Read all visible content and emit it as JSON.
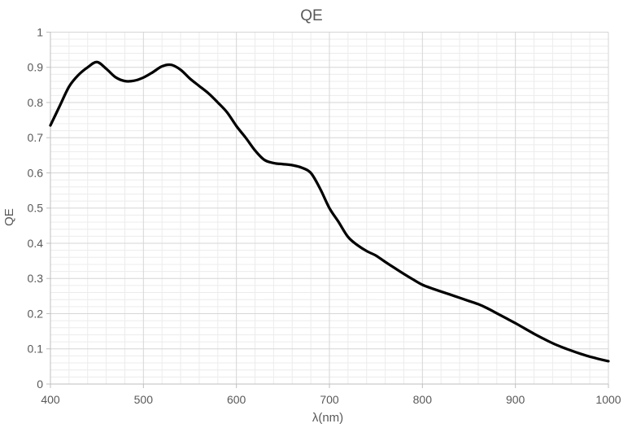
{
  "chart_data": {
    "type": "line",
    "title": "QE",
    "xlabel": "λ(nm)",
    "ylabel": "QE",
    "xlim": [
      400,
      1000
    ],
    "ylim": [
      0,
      1
    ],
    "x_major_step": 100,
    "x_minor_step": 20,
    "y_major_step": 0.1,
    "y_minor_step": 0.02,
    "grid": "major and minor gridlines, both axes",
    "legend_position": "none",
    "x_tick_labels": [
      "400",
      "500",
      "600",
      "700",
      "800",
      "900",
      "1000"
    ],
    "y_tick_labels": [
      "0",
      "0.1",
      "0.2",
      "0.3",
      "0.4",
      "0.5",
      "0.6",
      "0.7",
      "0.8",
      "0.9",
      "1"
    ],
    "x_ticks": [
      400,
      500,
      600,
      700,
      800,
      900,
      1000
    ],
    "y_ticks": [
      0,
      0.1,
      0.2,
      0.3,
      0.4,
      0.5,
      0.6,
      0.7,
      0.8,
      0.9,
      1
    ],
    "series": [
      {
        "name": "QE",
        "color": "#000000",
        "x": [
          400,
          410,
          420,
          430,
          440,
          450,
          460,
          470,
          480,
          490,
          500,
          510,
          520,
          530,
          540,
          550,
          560,
          570,
          580,
          590,
          600,
          610,
          620,
          630,
          640,
          650,
          660,
          670,
          680,
          690,
          700,
          710,
          720,
          730,
          740,
          750,
          760,
          770,
          780,
          790,
          800,
          810,
          820,
          830,
          840,
          850,
          860,
          870,
          880,
          890,
          900,
          910,
          920,
          930,
          940,
          950,
          960,
          970,
          980,
          990,
          1000
        ],
        "y": [
          0.735,
          0.79,
          0.845,
          0.878,
          0.9,
          0.915,
          0.896,
          0.872,
          0.861,
          0.862,
          0.871,
          0.886,
          0.903,
          0.907,
          0.893,
          0.868,
          0.847,
          0.826,
          0.8,
          0.772,
          0.733,
          0.7,
          0.664,
          0.637,
          0.628,
          0.625,
          0.622,
          0.615,
          0.6,
          0.555,
          0.5,
          0.46,
          0.418,
          0.395,
          0.378,
          0.365,
          0.347,
          0.33,
          0.313,
          0.297,
          0.282,
          0.272,
          0.263,
          0.254,
          0.245,
          0.236,
          0.227,
          0.215,
          0.201,
          0.187,
          0.173,
          0.158,
          0.143,
          0.129,
          0.116,
          0.105,
          0.095,
          0.086,
          0.078,
          0.071,
          0.065
        ]
      }
    ]
  },
  "colors": {
    "line": "#000000",
    "title_text": "#595959",
    "tick_text": "#595959",
    "axis_line": "#BFBFBF",
    "major_grid": "#D6D6D6",
    "minor_grid": "#ECECEC",
    "background": "#FFFFFF"
  }
}
